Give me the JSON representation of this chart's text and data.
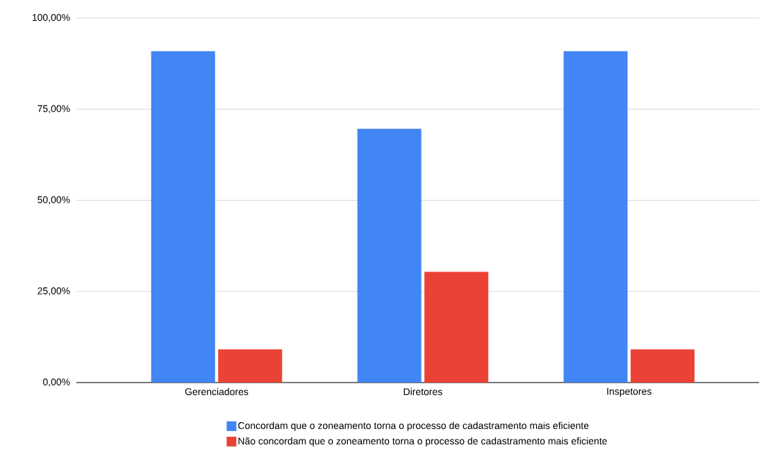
{
  "chart_data": {
    "type": "bar",
    "categories": [
      "Gerenciadores",
      "Diretores",
      "Inspetores"
    ],
    "series": [
      {
        "name": "Concordam que o zoneamento torna o processo de cadastramento mais eficiente",
        "color": "#4285f4",
        "values": [
          90.9,
          69.6,
          90.9
        ]
      },
      {
        "name": "Não concordam que o zoneamento torna o processo de cadastramento mais eficiente",
        "color": "#ea4335",
        "values": [
          9.1,
          30.4,
          9.1
        ]
      }
    ],
    "ylim": [
      0,
      100
    ],
    "yticks": [
      {
        "value": 0,
        "label": "0,00%"
      },
      {
        "value": 25,
        "label": "25,00%"
      },
      {
        "value": 50,
        "label": "50,00%"
      },
      {
        "value": 75,
        "label": "75,00%"
      },
      {
        "value": 100,
        "label": "100,00%"
      }
    ],
    "grid": "y",
    "legend": "bottom"
  }
}
